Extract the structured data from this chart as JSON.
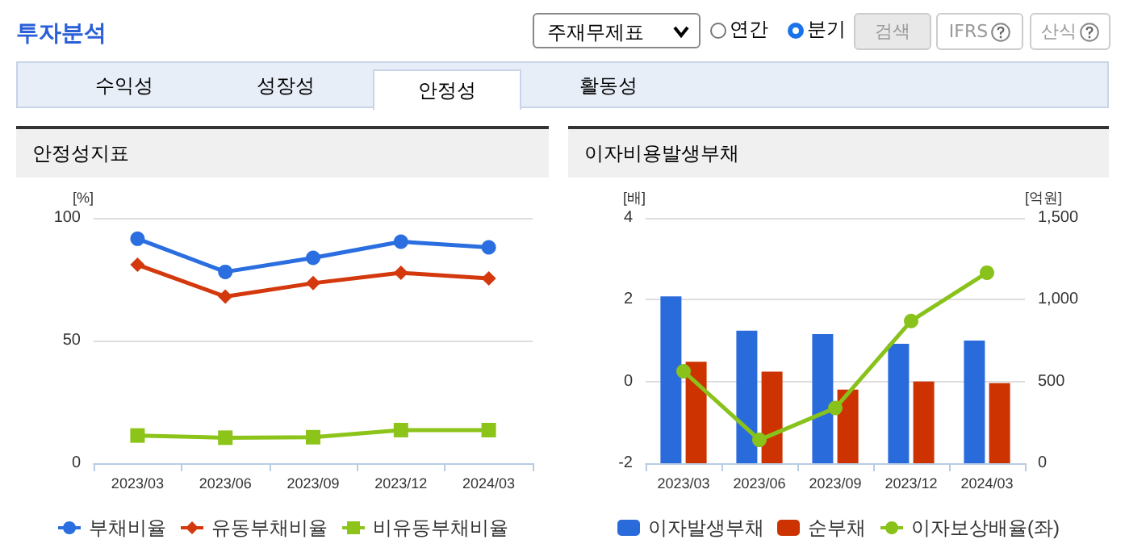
{
  "chart_data": [
    {
      "type": "line",
      "title": "안정성지표",
      "ylabel": "[%]",
      "annotations": [
        "투자분석",
        "주재무제표",
        "연간",
        "분기",
        "검색",
        "IFRS",
        "산식",
        "수익성",
        "성장성",
        "안정성",
        "활동성"
      ],
      "categories": [
        "2023/03",
        "2023/06",
        "2023/09",
        "2023/12",
        "2024/03"
      ],
      "series": [
        {
          "name": "부채비율",
          "color": "#2a6ee0",
          "marker": "circle",
          "values": [
            91.5,
            78,
            83.7,
            90.3,
            88
          ]
        },
        {
          "name": "유동부채비율",
          "color": "#d4380d",
          "marker": "diamond",
          "values": [
            80.9,
            67.9,
            73.4,
            77.6,
            75.3
          ]
        },
        {
          "name": "비유동부채비율",
          "color": "#8cc41a",
          "marker": "square",
          "values": [
            11.3,
            10.4,
            10.6,
            13.5,
            13.5
          ]
        }
      ],
      "ylim": [
        0,
        100
      ],
      "yticks": [
        0,
        50,
        100
      ],
      "grid": "y",
      "legend": "bottom"
    },
    {
      "type": "bar",
      "title": "이자비용발생부채",
      "ylabel": "[배]",
      "y2label": "[억원]",
      "categories": [
        "2023/03",
        "2023/06",
        "2023/09",
        "2023/12",
        "2024/03"
      ],
      "series": [
        {
          "name": "이자발생부채",
          "color": "#2a6bdc",
          "axis": "y2",
          "values": [
            1020,
            810,
            790,
            730,
            750
          ]
        },
        {
          "name": "순부채",
          "color": "#cc3300",
          "axis": "y2",
          "values": [
            620,
            560,
            450,
            500,
            490
          ]
        },
        {
          "name": "이자보상배율(좌)",
          "type": "line",
          "color": "#88c21a",
          "marker": "circle",
          "values": [
            0.25,
            -1.43,
            -0.65,
            1.48,
            2.66
          ]
        }
      ],
      "ylim": [
        -2,
        4
      ],
      "yticks": [
        -2,
        0,
        2,
        4
      ],
      "y2lim": [
        0,
        1500
      ],
      "y2ticks": [
        0,
        500,
        {
          "value": 1000,
          "label": "1,000"
        },
        {
          "value": 1500,
          "label": "1,500"
        }
      ],
      "grid": "y",
      "legend": "bottom"
    }
  ]
}
